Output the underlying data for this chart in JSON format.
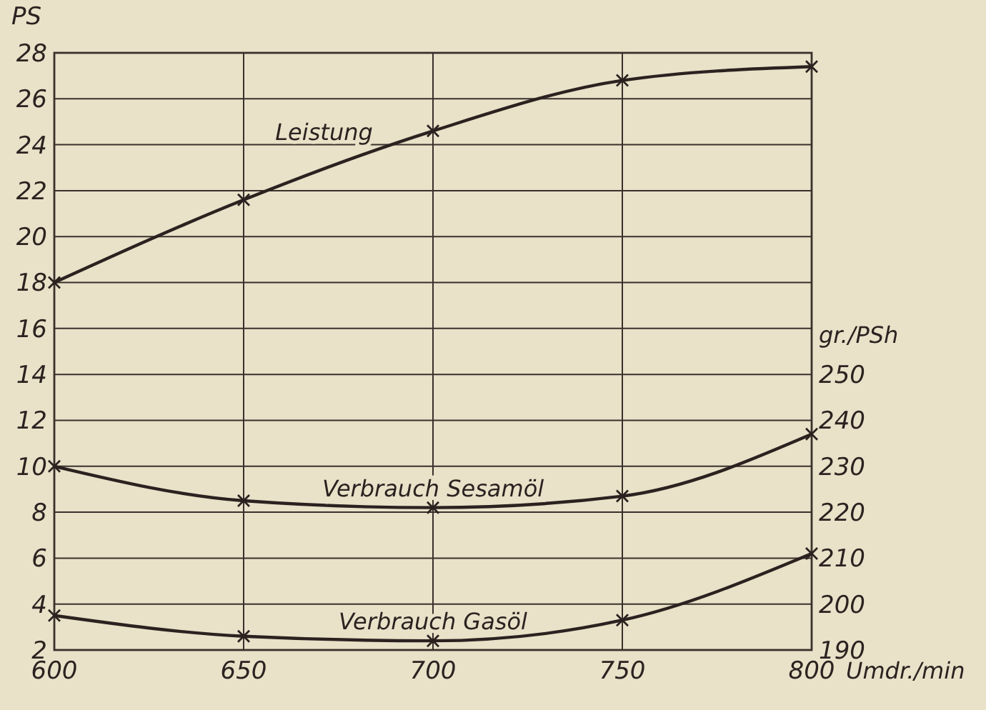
{
  "chart_data": {
    "type": "line",
    "xlabel": "Umdr./min",
    "ylabel": "PS",
    "y2label": "gr./PSh",
    "x": [
      600,
      650,
      700,
      750,
      800
    ],
    "xlim": [
      600,
      800
    ],
    "xticks": [
      600,
      650,
      700,
      750,
      800
    ],
    "ylim": [
      2,
      28
    ],
    "yticks": [
      2,
      4,
      6,
      8,
      10,
      12,
      14,
      16,
      18,
      20,
      22,
      24,
      26,
      28
    ],
    "y2lim": [
      190,
      320
    ],
    "y2ticks": [
      190,
      200,
      210,
      220,
      230,
      240,
      250
    ],
    "grid": true,
    "marker": "cross",
    "line_style": "solid",
    "series": [
      {
        "name": "Leistung",
        "color": "#2b2220",
        "values": [
          18,
          21.6,
          24.6,
          26.8,
          27.4
        ]
      },
      {
        "name": "Verbrauch Sesamöl",
        "color": "#2b2220",
        "axis": "y2",
        "values": [
          230,
          222.5,
          221,
          223.5,
          237
        ]
      },
      {
        "name": "Verbrauch Gasöl",
        "color": "#2b2220",
        "axis": "y2",
        "values": [
          197.5,
          193,
          192,
          196.5,
          211
        ]
      }
    ]
  }
}
